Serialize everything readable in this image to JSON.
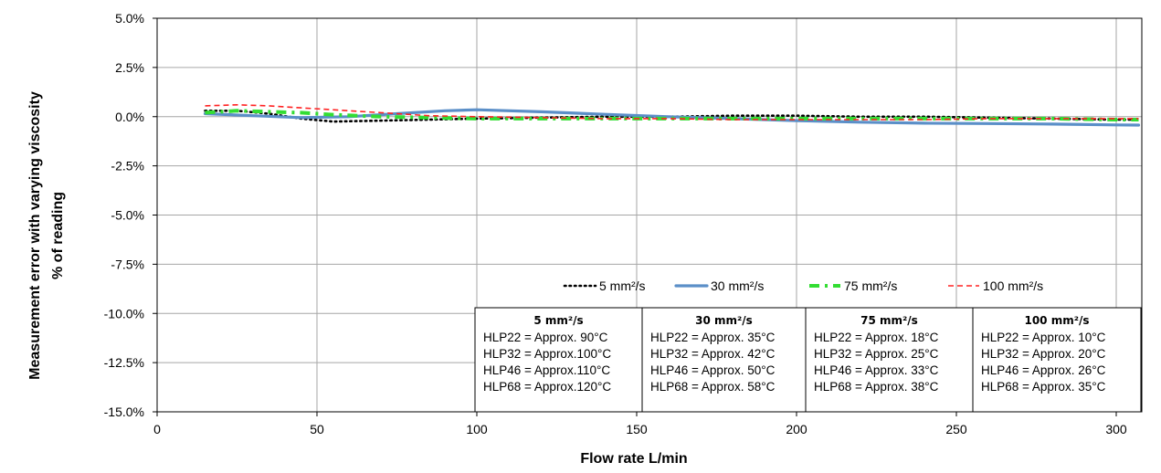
{
  "chart_data": {
    "type": "line",
    "title": "",
    "xlabel": "Flow rate L/min",
    "ylabel_lines": [
      "Measurement error with varying viscosity",
      "% of reading"
    ],
    "xlim": [
      0,
      308
    ],
    "ylim": [
      -15,
      5
    ],
    "xticks": [
      "0",
      "50",
      "100",
      "150",
      "200",
      "250",
      "300"
    ],
    "xtick_values": [
      0,
      50,
      100,
      150,
      200,
      250,
      300
    ],
    "yticks": [
      "5.0%",
      "2.5%",
      "0.0%",
      "-2.5%",
      "-5.0%",
      "-7.5%",
      "-10.0%",
      "-12.5%",
      "-15.0%"
    ],
    "ytick_values": [
      5,
      2.5,
      0,
      -2.5,
      -5,
      -7.5,
      -10,
      -12.5,
      -15
    ],
    "grid": true,
    "legend_placement": "bottom-right, above table",
    "series": [
      {
        "name": "5 mm²/s",
        "color": "#000000",
        "style": "dotted",
        "x": [
          15,
          25,
          35,
          45,
          55,
          70,
          85,
          100,
          120,
          140,
          160,
          180,
          200,
          220,
          240,
          260,
          280,
          300,
          307
        ],
        "y": [
          0.3,
          0.3,
          0.15,
          -0.1,
          -0.25,
          -0.2,
          -0.15,
          -0.1,
          -0.05,
          0.0,
          0.0,
          0.05,
          0.05,
          0.0,
          0.0,
          -0.05,
          -0.1,
          -0.15,
          -0.15
        ]
      },
      {
        "name": "30 mm²/s",
        "color": "#5b8fc8",
        "style": "solid",
        "x": [
          15,
          30,
          45,
          60,
          75,
          90,
          100,
          120,
          140,
          160,
          180,
          200,
          220,
          240,
          260,
          280,
          300,
          307
        ],
        "y": [
          0.15,
          0.05,
          -0.05,
          0.0,
          0.15,
          0.3,
          0.35,
          0.25,
          0.12,
          0.0,
          -0.1,
          -0.2,
          -0.28,
          -0.33,
          -0.35,
          -0.38,
          -0.42,
          -0.43
        ]
      },
      {
        "name": "75 mm²/s",
        "color": "#33dd33",
        "style": "dashdot",
        "x": [
          15,
          25,
          35,
          45,
          55,
          70,
          85,
          100,
          120,
          140,
          160,
          180,
          200,
          220,
          240,
          260,
          280,
          300,
          307
        ],
        "y": [
          0.2,
          0.3,
          0.25,
          0.2,
          0.1,
          0.0,
          -0.05,
          -0.1,
          -0.1,
          -0.1,
          -0.1,
          -0.1,
          -0.1,
          -0.1,
          -0.1,
          -0.1,
          -0.1,
          -0.15,
          -0.15
        ]
      },
      {
        "name": "100 mm²/s",
        "color": "#ff2222",
        "style": "dashed",
        "x": [
          15,
          25,
          35,
          45,
          55,
          70,
          85,
          100,
          120,
          140,
          160,
          180,
          200,
          220,
          240,
          260,
          280,
          300,
          307
        ],
        "y": [
          0.55,
          0.6,
          0.55,
          0.45,
          0.35,
          0.2,
          0.05,
          0.0,
          -0.05,
          -0.1,
          -0.1,
          -0.15,
          -0.15,
          -0.15,
          -0.15,
          -0.1,
          -0.1,
          -0.1,
          -0.1
        ]
      }
    ],
    "table": [
      {
        "header": "5 mm²/s",
        "lines": [
          "HLP22 = Approx.  90°C",
          "HLP32 = Approx.100°C",
          "HLP46 = Approx.110°C",
          "HLP68 = Approx.120°C"
        ]
      },
      {
        "header": "30 mm²/s",
        "lines": [
          "HLP22 = Approx. 35°C",
          "HLP32 = Approx. 42°C",
          "HLP46 = Approx. 50°C",
          "HLP68 = Approx. 58°C"
        ]
      },
      {
        "header": "75 mm²/s",
        "lines": [
          "HLP22 = Approx. 18°C",
          "HLP32 = Approx. 25°C",
          "HLP46 = Approx. 33°C",
          "HLP68 = Approx. 38°C"
        ]
      },
      {
        "header": "100 mm²/s",
        "lines": [
          "HLP22 = Approx. 10°C",
          "HLP32 = Approx. 20°C",
          "HLP46 = Approx. 26°C",
          "HLP68 = Approx. 35°C"
        ]
      }
    ]
  }
}
